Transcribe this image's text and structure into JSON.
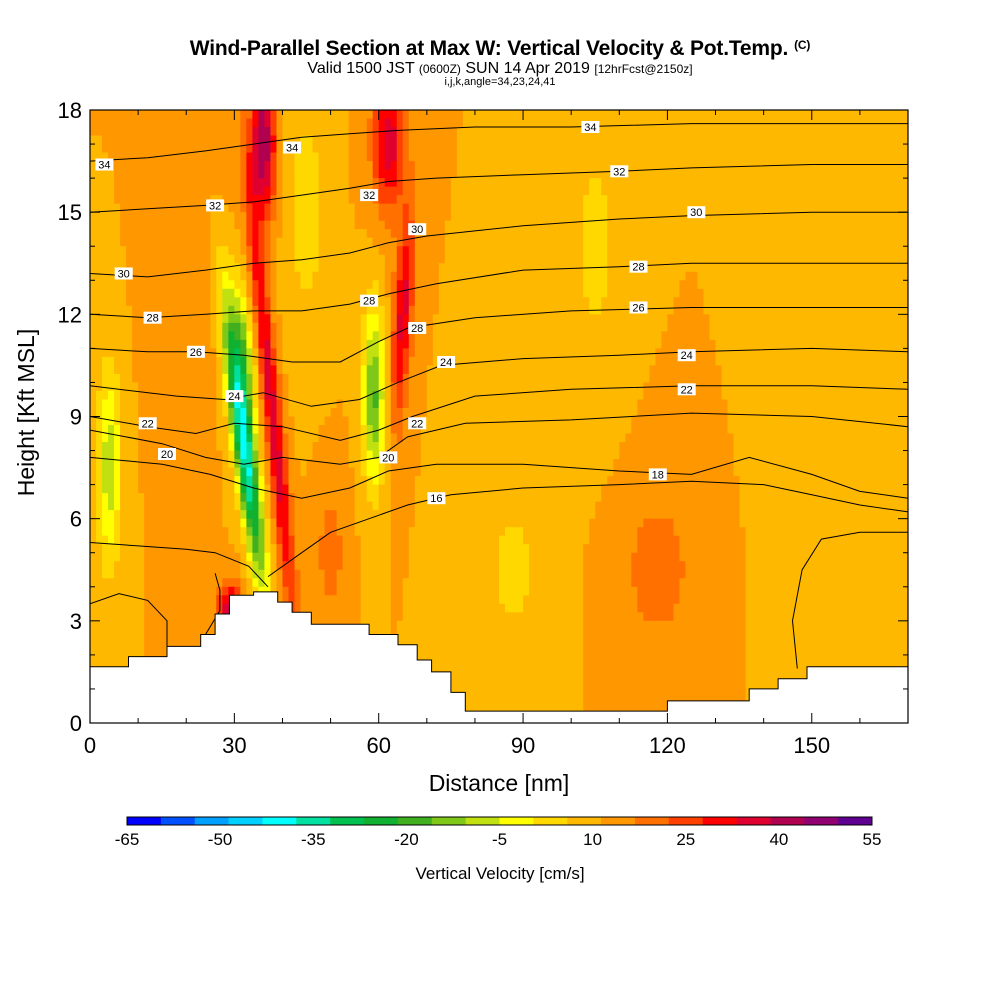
{
  "chart_data": {
    "type": "heatmap",
    "title": "Wind-Parallel Section at Max W: Vertical Velocity & Pot.Temp.",
    "title_units": "(C)",
    "subtitle_main": "Valid 1500 JST",
    "subtitle_utc": "(0600Z)",
    "subtitle_date": "SUN 14 Apr 2019",
    "subtitle_fcst": "[12hrFcst@2150z]",
    "subtitle_indices": "i,j,k,angle=34,23,24,41",
    "xlabel": "Distance [nm]",
    "ylabel": "Height [Kft MSL]",
    "xlim": [
      0,
      170
    ],
    "ylim": [
      0,
      18
    ],
    "xticks": [
      0,
      30,
      60,
      90,
      120,
      150
    ],
    "yticks": [
      0,
      3,
      6,
      9,
      12,
      15,
      18
    ],
    "colorbar": {
      "label": "Vertical Velocity [cm/s]",
      "tick_labels": [
        "-65",
        "-50",
        "-35",
        "-20",
        "-5",
        "10",
        "25",
        "40",
        "55"
      ],
      "colors": [
        "#0000ff",
        "#0050ff",
        "#00a0ff",
        "#00d0ff",
        "#00ffff",
        "#00e0a0",
        "#00c050",
        "#10b030",
        "#40b020",
        "#80c818",
        "#c0e010",
        "#ffff00",
        "#ffd800",
        "#ffb800",
        "#ff9800",
        "#ff7000",
        "#ff4000",
        "#ff0000",
        "#e00030",
        "#b00050",
        "#900070",
        "#600090"
      ]
    },
    "terrain_kft": [
      [
        0,
        1.65
      ],
      [
        8,
        1.65
      ],
      [
        8,
        1.95
      ],
      [
        16,
        1.95
      ],
      [
        16,
        2.25
      ],
      [
        23,
        2.25
      ],
      [
        23,
        2.6
      ],
      [
        26,
        2.6
      ],
      [
        26,
        3.2
      ],
      [
        29,
        3.2
      ],
      [
        29,
        3.75
      ],
      [
        34,
        3.75
      ],
      [
        34,
        3.85
      ],
      [
        39,
        3.85
      ],
      [
        39,
        3.55
      ],
      [
        42,
        3.55
      ],
      [
        42,
        3.25
      ],
      [
        46,
        3.25
      ],
      [
        46,
        2.9
      ],
      [
        58,
        2.9
      ],
      [
        58,
        2.6
      ],
      [
        64,
        2.6
      ],
      [
        64,
        2.3
      ],
      [
        68,
        2.3
      ],
      [
        68,
        1.85
      ],
      [
        71,
        1.85
      ],
      [
        71,
        1.5
      ],
      [
        75,
        1.5
      ],
      [
        75,
        0.9
      ],
      [
        78,
        0.9
      ],
      [
        78,
        0.35
      ],
      [
        120,
        0.35
      ],
      [
        120,
        0.65
      ],
      [
        137,
        0.65
      ],
      [
        137,
        1.0
      ],
      [
        143,
        1.0
      ],
      [
        143,
        1.3
      ],
      [
        149,
        1.3
      ],
      [
        149,
        1.65
      ],
      [
        170,
        1.65
      ]
    ],
    "w_features": [
      {
        "x": 32,
        "y": 8.2,
        "sx": 2.2,
        "sy": 4.0,
        "w": -48,
        "tilt": -0.22
      },
      {
        "x": 32,
        "y": 11.0,
        "sx": 2.2,
        "sy": 2.0,
        "w": -18,
        "tilt": -0.15
      },
      {
        "x": 38,
        "y": 9.0,
        "sx": 1.8,
        "sy": 7.0,
        "w": 24,
        "tilt": -0.18
      },
      {
        "x": 36,
        "y": 17.0,
        "sx": 2.6,
        "sy": 2.2,
        "w": 30,
        "tilt": 0
      },
      {
        "x": 29,
        "y": 3.2,
        "sx": 2.5,
        "sy": 0.9,
        "w": 28,
        "tilt": 0
      },
      {
        "x": 45,
        "y": 15.0,
        "sx": 4.0,
        "sy": 3.5,
        "w": -8,
        "tilt": 0
      },
      {
        "x": 59,
        "y": 9.6,
        "sx": 2.3,
        "sy": 2.6,
        "w": -26,
        "tilt": 0
      },
      {
        "x": 65,
        "y": 12.0,
        "sx": 2.0,
        "sy": 3.2,
        "w": 22,
        "tilt": 0.1
      },
      {
        "x": 62,
        "y": 17.0,
        "sx": 3.2,
        "sy": 2.0,
        "w": 24,
        "tilt": 0
      },
      {
        "x": 50,
        "y": 5.0,
        "sx": 3.0,
        "sy": 2.0,
        "w": 8,
        "tilt": 0
      },
      {
        "x": 4,
        "y": 7.5,
        "sx": 2.5,
        "sy": 3.0,
        "w": -18,
        "tilt": 0
      },
      {
        "x": 88,
        "y": 4.5,
        "sx": 8.0,
        "sy": 3.0,
        "w": -6,
        "tilt": 0
      },
      {
        "x": 118,
        "y": 4.5,
        "sx": 9.0,
        "sy": 2.8,
        "w": 7,
        "tilt": 0
      },
      {
        "x": 105,
        "y": 14.0,
        "sx": 6.0,
        "sy": 5.0,
        "w": -6,
        "tilt": 0
      },
      {
        "x": 145,
        "y": 12.0,
        "sx": 6.0,
        "sy": 6.0,
        "w": -4,
        "tilt": 0
      },
      {
        "x": 160,
        "y": 3.5,
        "sx": 6.0,
        "sy": 2.5,
        "w": -3,
        "tilt": 0
      },
      {
        "x": 20,
        "y": 14.0,
        "sx": 6.0,
        "sy": 4.0,
        "w": 5,
        "tilt": 0
      }
    ],
    "theta_contours": [
      {
        "value": 16,
        "label": "16",
        "label_at": [
          72,
          6.6
        ],
        "pts": [
          [
            37,
            4.3
          ],
          [
            44,
            5.0
          ],
          [
            50,
            5.6
          ],
          [
            58,
            6.0
          ],
          [
            66,
            6.4
          ],
          [
            75,
            6.7
          ],
          [
            90,
            6.9
          ],
          [
            110,
            7.0
          ],
          [
            125,
            7.1
          ],
          [
            140,
            7.0
          ],
          [
            150,
            6.7
          ],
          [
            160,
            6.4
          ],
          [
            170,
            6.2
          ]
        ]
      },
      {
        "value": 18,
        "label": "18",
        "label_at": [
          118,
          7.3
        ],
        "pts": [
          [
            0,
            7.8
          ],
          [
            15,
            7.6
          ],
          [
            25,
            7.3
          ],
          [
            34,
            6.9
          ],
          [
            44,
            6.6
          ],
          [
            54,
            6.9
          ],
          [
            62,
            7.4
          ],
          [
            72,
            7.6
          ],
          [
            90,
            7.6
          ],
          [
            110,
            7.4
          ],
          [
            125,
            7.3
          ],
          [
            137,
            7.8
          ],
          [
            150,
            7.3
          ],
          [
            160,
            6.8
          ],
          [
            170,
            6.6
          ]
        ]
      },
      {
        "value": 20,
        "label": "20",
        "label_at": [
          62,
          7.8
        ],
        "pts": [
          [
            0,
            8.6
          ],
          [
            15,
            8.2
          ],
          [
            24,
            7.8
          ],
          [
            32,
            7.6
          ],
          [
            40,
            7.8
          ],
          [
            52,
            7.6
          ],
          [
            60,
            7.8
          ],
          [
            66,
            8.4
          ],
          [
            78,
            8.8
          ],
          [
            100,
            8.9
          ],
          [
            125,
            9.1
          ],
          [
            150,
            9.0
          ],
          [
            170,
            8.7
          ]
        ]
      },
      {
        "value": 20,
        "label": "20",
        "label_at": [
          16,
          7.9
        ],
        "pts": []
      },
      {
        "value": 22,
        "label": "22",
        "label_at": [
          68,
          8.8
        ],
        "pts": [
          [
            0,
            9.0
          ],
          [
            12,
            8.7
          ],
          [
            22,
            8.5
          ],
          [
            30,
            8.8
          ],
          [
            40,
            8.7
          ],
          [
            52,
            8.3
          ],
          [
            60,
            8.6
          ],
          [
            67,
            9.0
          ],
          [
            80,
            9.6
          ],
          [
            100,
            9.8
          ],
          [
            125,
            9.9
          ],
          [
            150,
            9.9
          ],
          [
            170,
            9.8
          ]
        ]
      },
      {
        "value": 22,
        "label": "22",
        "label_at": [
          12,
          8.8
        ],
        "pts": []
      },
      {
        "value": 22,
        "label": "22",
        "label_at": [
          124,
          9.8
        ],
        "pts": []
      },
      {
        "value": 24,
        "label": "24",
        "label_at": [
          30,
          9.6
        ],
        "pts": [
          [
            0,
            9.9
          ],
          [
            18,
            9.6
          ],
          [
            28,
            9.5
          ],
          [
            36,
            9.7
          ],
          [
            46,
            9.3
          ],
          [
            56,
            9.5
          ],
          [
            64,
            10.0
          ],
          [
            73,
            10.5
          ],
          [
            90,
            10.7
          ],
          [
            110,
            10.8
          ],
          [
            125,
            10.9
          ],
          [
            150,
            11.0
          ],
          [
            170,
            10.9
          ]
        ]
      },
      {
        "value": 24,
        "label": "24",
        "label_at": [
          74,
          10.6
        ],
        "pts": []
      },
      {
        "value": 24,
        "label": "24",
        "label_at": [
          124,
          10.8
        ],
        "pts": []
      },
      {
        "value": 26,
        "label": "26",
        "label_at": [
          22,
          10.9
        ],
        "pts": [
          [
            0,
            11.0
          ],
          [
            12,
            10.9
          ],
          [
            22,
            10.9
          ],
          [
            32,
            10.8
          ],
          [
            42,
            10.6
          ],
          [
            52,
            10.6
          ],
          [
            60,
            11.2
          ],
          [
            66,
            11.6
          ],
          [
            80,
            11.9
          ],
          [
            100,
            12.1
          ],
          [
            125,
            12.2
          ],
          [
            150,
            12.2
          ],
          [
            170,
            12.2
          ]
        ]
      },
      {
        "value": 26,
        "label": "26",
        "label_at": [
          114,
          12.2
        ],
        "pts": []
      },
      {
        "value": 28,
        "label": "28",
        "label_at": [
          13,
          11.9
        ],
        "pts": [
          [
            0,
            12.0
          ],
          [
            12,
            11.9
          ],
          [
            24,
            12.0
          ],
          [
            34,
            12.1
          ],
          [
            44,
            12.1
          ],
          [
            54,
            12.3
          ],
          [
            62,
            12.6
          ],
          [
            72,
            12.9
          ],
          [
            90,
            13.3
          ],
          [
            110,
            13.4
          ],
          [
            125,
            13.5
          ],
          [
            150,
            13.5
          ],
          [
            170,
            13.5
          ]
        ]
      },
      {
        "value": 28,
        "label": "28",
        "label_at": [
          58,
          12.4
        ],
        "pts": []
      },
      {
        "value": 28,
        "label": "28",
        "label_at": [
          68,
          11.6
        ],
        "pts": []
      },
      {
        "value": 28,
        "label": "28",
        "label_at": [
          114,
          13.4
        ],
        "pts": []
      },
      {
        "value": 30,
        "label": "30",
        "label_at": [
          7,
          13.2
        ],
        "pts": [
          [
            0,
            13.2
          ],
          [
            12,
            13.1
          ],
          [
            24,
            13.3
          ],
          [
            34,
            13.5
          ],
          [
            44,
            13.6
          ],
          [
            54,
            13.8
          ],
          [
            62,
            14.1
          ],
          [
            70,
            14.3
          ],
          [
            90,
            14.6
          ],
          [
            110,
            14.8
          ],
          [
            125,
            14.9
          ],
          [
            150,
            15.0
          ],
          [
            170,
            15.0
          ]
        ]
      },
      {
        "value": 30,
        "label": "30",
        "label_at": [
          68,
          14.5
        ],
        "pts": []
      },
      {
        "value": 30,
        "label": "30",
        "label_at": [
          126,
          15.0
        ],
        "pts": []
      },
      {
        "value": 32,
        "label": "32",
        "label_at": [
          26,
          15.2
        ],
        "pts": [
          [
            0,
            15.0
          ],
          [
            12,
            15.1
          ],
          [
            24,
            15.2
          ],
          [
            34,
            15.3
          ],
          [
            44,
            15.5
          ],
          [
            54,
            15.7
          ],
          [
            62,
            15.9
          ],
          [
            72,
            16.0
          ],
          [
            90,
            16.1
          ],
          [
            110,
            16.2
          ],
          [
            125,
            16.3
          ],
          [
            150,
            16.4
          ],
          [
            170,
            16.4
          ]
        ]
      },
      {
        "value": 32,
        "label": "32",
        "label_at": [
          58,
          15.5
        ],
        "pts": []
      },
      {
        "value": 32,
        "label": "32",
        "label_at": [
          110,
          16.2
        ],
        "pts": []
      },
      {
        "value": 34,
        "label": "34",
        "label_at": [
          3,
          16.4
        ],
        "pts": [
          [
            0,
            16.5
          ],
          [
            12,
            16.6
          ],
          [
            24,
            16.8
          ],
          [
            34,
            17.0
          ],
          [
            44,
            17.2
          ],
          [
            54,
            17.3
          ],
          [
            64,
            17.4
          ],
          [
            80,
            17.5
          ],
          [
            100,
            17.5
          ],
          [
            125,
            17.6
          ],
          [
            150,
            17.6
          ],
          [
            170,
            17.6
          ]
        ]
      },
      {
        "value": 34,
        "label": "34",
        "label_at": [
          42,
          16.9
        ],
        "pts": []
      },
      {
        "value": 34,
        "label": "34",
        "label_at": [
          104,
          17.5
        ],
        "pts": []
      }
    ],
    "extra_contours": [
      {
        "pts": [
          [
            0,
            5.3
          ],
          [
            10,
            5.2
          ],
          [
            20,
            5.1
          ],
          [
            26,
            5.0
          ],
          [
            33,
            4.6
          ],
          [
            37,
            4.0
          ]
        ]
      },
      {
        "pts": [
          [
            0,
            3.5
          ],
          [
            6,
            3.8
          ],
          [
            12,
            3.6
          ],
          [
            16,
            3.0
          ],
          [
            16,
            2.0
          ]
        ]
      },
      {
        "pts": [
          [
            24,
            2.6
          ],
          [
            27,
            3.3
          ],
          [
            27,
            3.9
          ],
          [
            26,
            4.4
          ]
        ]
      },
      {
        "pts": [
          [
            147,
            1.6
          ],
          [
            146,
            3.0
          ],
          [
            148,
            4.5
          ],
          [
            152,
            5.4
          ],
          [
            160,
            5.6
          ],
          [
            170,
            5.6
          ]
        ]
      }
    ]
  }
}
